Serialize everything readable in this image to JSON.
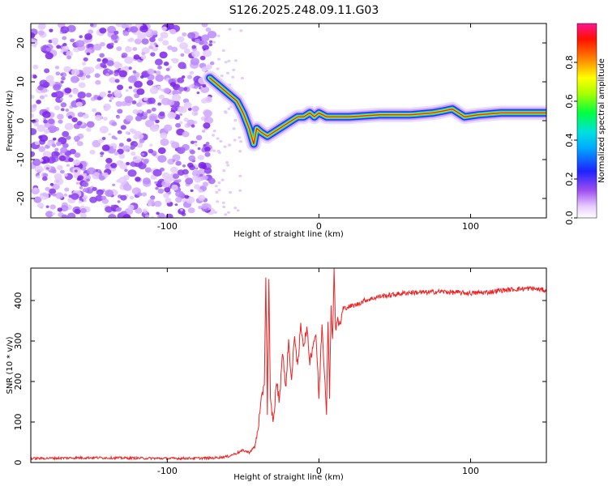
{
  "title": "S126.2025.248.09.11.G03",
  "chart_data": [
    {
      "type": "heatmap",
      "xlabel": "Height of straight line (km)",
      "ylabel": "Frequency (Hz)",
      "xlim": [
        -190,
        150
      ],
      "ylim": [
        -25,
        25
      ],
      "xticks": [
        -100,
        0,
        100
      ],
      "yticks": [
        -20,
        -10,
        0,
        10,
        20
      ],
      "colorbar": {
        "label": "Normalized spectral amplitude",
        "ticks": [
          "0.0",
          "0.2",
          "0.4",
          "0.6",
          "0.8"
        ],
        "tick_values": [
          0.0,
          0.2,
          0.4,
          0.6,
          0.8
        ],
        "range": [
          0,
          1
        ],
        "colors": [
          "#ffffff",
          "#d9b3ff",
          "#8a2be2",
          "#1e22ff",
          "#00e0ff",
          "#00ff40",
          "#ffff00",
          "#ff8000",
          "#ff1000",
          "#ff1493"
        ]
      },
      "ridge": {
        "x": [
          -72,
          -66,
          -60,
          -54,
          -50,
          -46,
          -43,
          -41,
          -38,
          -34,
          -30,
          -26,
          -22,
          -18,
          -14,
          -10,
          -6,
          -3,
          0,
          5,
          10,
          20,
          40,
          60,
          75,
          82,
          88,
          92,
          96,
          105,
          120,
          140,
          150
        ],
        "y": [
          11,
          9,
          7,
          5,
          2,
          -2,
          -6,
          -2,
          -3,
          -4,
          -3,
          -2,
          -1,
          0,
          1,
          1,
          2,
          1,
          2,
          1,
          1,
          1,
          1.5,
          1.5,
          2,
          2.5,
          3,
          2,
          1,
          1.5,
          2,
          2,
          2
        ]
      }
    },
    {
      "type": "line",
      "xlabel": "Height of straight line (km)",
      "ylabel": "SNR (10 * v/v)",
      "xlim": [
        -190,
        150
      ],
      "ylim": [
        0,
        480
      ],
      "xticks": [
        -100,
        0,
        100
      ],
      "yticks": [
        0,
        100,
        200,
        300,
        400
      ],
      "color": "#ee2222",
      "series": [
        {
          "name": "SNR",
          "x": [
            -190,
            -150,
            -100,
            -70,
            -60,
            -55,
            -50,
            -46,
            -42,
            -40,
            -38,
            -36,
            -35,
            -34,
            -33,
            -32,
            -30,
            -28,
            -26,
            -24,
            -22,
            -20,
            -18,
            -16,
            -14,
            -12,
            -10,
            -8,
            -6,
            -4,
            -2,
            0,
            2,
            4,
            5,
            6,
            7,
            8,
            9,
            10,
            11,
            12,
            14,
            16,
            20,
            25,
            30,
            40,
            50,
            60,
            70,
            80,
            90,
            100,
            110,
            120,
            130,
            140,
            150
          ],
          "y": [
            10,
            12,
            10,
            11,
            15,
            22,
            30,
            25,
            40,
            90,
            150,
            200,
            455,
            130,
            450,
            150,
            100,
            200,
            150,
            280,
            180,
            300,
            200,
            320,
            230,
            340,
            290,
            330,
            250,
            290,
            320,
            160,
            340,
            200,
            130,
            360,
            150,
            390,
            300,
            480,
            330,
            350,
            340,
            380,
            385,
            390,
            400,
            410,
            415,
            420,
            420,
            422,
            420,
            418,
            420,
            425,
            428,
            430,
            425
          ]
        }
      ]
    }
  ]
}
